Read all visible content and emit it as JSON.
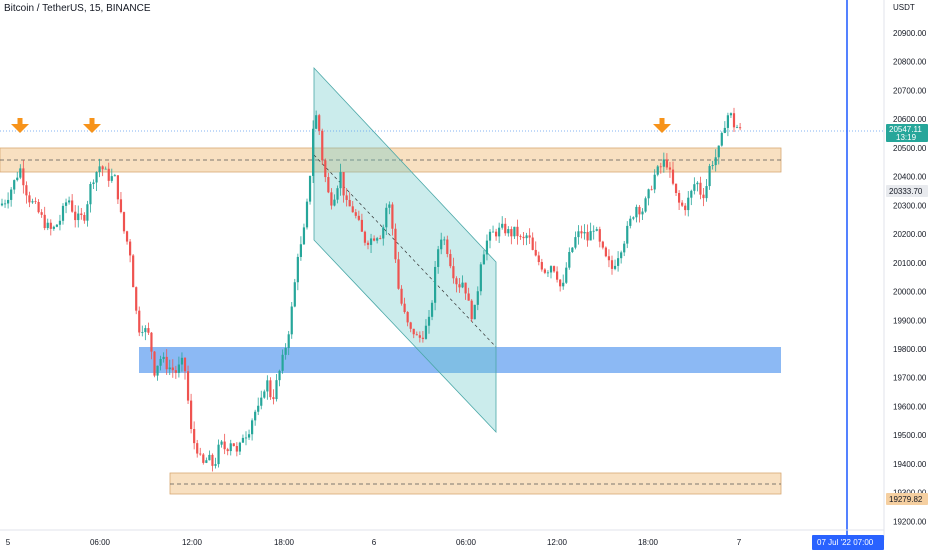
{
  "header": {
    "symbol": "Bitcoin / TetherUS, 15, BINANCE"
  },
  "price_axis": {
    "currency": "USDT",
    "ticks": [
      "20900.00",
      "20800.00",
      "20700.00",
      "20600.00",
      "20500.00",
      "20400.00",
      "20300.00",
      "20200.00",
      "20100.00",
      "20000.00",
      "19900.00",
      "19800.00",
      "19700.00",
      "19600.00",
      "19500.00",
      "19400.00",
      "19300.00",
      "19200.00"
    ],
    "last_price_label": "20547.11",
    "countdown_label": "13:19",
    "level_label": "20333.70",
    "support_label": "19279.82"
  },
  "time_axis": {
    "ticks": [
      "5",
      "06:00",
      "12:00",
      "18:00",
      "6",
      "06:00",
      "12:00",
      "18:00",
      "7"
    ],
    "crosshair_label": "07 Jul '22   07:00"
  },
  "colors": {
    "up": "#26a69a",
    "down": "#ef5350",
    "resistance_zone": "#f5cfa0",
    "demand_zone": "#5b9bf0",
    "channel": "#6bc9c9",
    "arrow": "#f7931a",
    "crosshair": "#2962ff"
  },
  "icons": {
    "marker": "down-arrow-icon"
  },
  "chart_data": {
    "type": "candlestick",
    "title": "Bitcoin / TetherUS, 15, BINANCE",
    "ylim": [
      19170,
      20980
    ],
    "x_ticks": [
      "5",
      "06:00",
      "12:00",
      "18:00",
      "6",
      "06:00",
      "12:00",
      "18:00",
      "7"
    ],
    "zones": [
      {
        "kind": "resistance",
        "from": 20400,
        "to": 20480
      },
      {
        "kind": "demand",
        "from": 19715,
        "to": 19805
      },
      {
        "kind": "support",
        "from": 19300,
        "to": 19370
      }
    ],
    "horizontal_levels": [
      20547.11,
      20333.7,
      19279.82
    ],
    "path": [
      [
        0,
        20300
      ],
      [
        6,
        20320
      ],
      [
        14,
        20380
      ],
      [
        20,
        20430
      ],
      [
        28,
        20330
      ],
      [
        36,
        20290
      ],
      [
        46,
        20230
      ],
      [
        52,
        20210
      ],
      [
        60,
        20250
      ],
      [
        68,
        20330
      ],
      [
        76,
        20250
      ],
      [
        84,
        20260
      ],
      [
        92,
        20390
      ],
      [
        100,
        20440
      ],
      [
        108,
        20400
      ],
      [
        116,
        20390
      ],
      [
        120,
        20280
      ],
      [
        124,
        20210
      ],
      [
        130,
        20140
      ],
      [
        134,
        20000
      ],
      [
        138,
        19870
      ],
      [
        142,
        19880
      ],
      [
        150,
        19840
      ],
      [
        154,
        19720
      ],
      [
        160,
        19770
      ],
      [
        168,
        19740
      ],
      [
        176,
        19720
      ],
      [
        184,
        19760
      ],
      [
        188,
        19620
      ],
      [
        192,
        19480
      ],
      [
        196,
        19470
      ],
      [
        202,
        19390
      ],
      [
        208,
        19420
      ],
      [
        214,
        19390
      ],
      [
        220,
        19470
      ],
      [
        226,
        19450
      ],
      [
        232,
        19490
      ],
      [
        238,
        19420
      ],
      [
        242,
        19500
      ],
      [
        248,
        19510
      ],
      [
        254,
        19580
      ],
      [
        260,
        19590
      ],
      [
        266,
        19700
      ],
      [
        272,
        19620
      ],
      [
        278,
        19700
      ],
      [
        284,
        19780
      ],
      [
        290,
        19890
      ],
      [
        294,
        20000
      ],
      [
        298,
        20140
      ],
      [
        302,
        20160
      ],
      [
        306,
        20260
      ],
      [
        310,
        20410
      ],
      [
        314,
        20620
      ],
      [
        318,
        20600
      ],
      [
        322,
        20470
      ],
      [
        326,
        20380
      ],
      [
        330,
        20310
      ],
      [
        336,
        20350
      ],
      [
        340,
        20420
      ],
      [
        346,
        20300
      ],
      [
        352,
        20290
      ],
      [
        358,
        20240
      ],
      [
        364,
        20180
      ],
      [
        370,
        20180
      ],
      [
        376,
        20200
      ],
      [
        382,
        20200
      ],
      [
        388,
        20330
      ],
      [
        394,
        20180
      ],
      [
        398,
        20020
      ],
      [
        402,
        19950
      ],
      [
        406,
        19900
      ],
      [
        410,
        19860
      ],
      [
        414,
        19860
      ],
      [
        418,
        19830
      ],
      [
        424,
        19860
      ],
      [
        430,
        19900
      ],
      [
        434,
        20040
      ],
      [
        440,
        20200
      ],
      [
        444,
        20180
      ],
      [
        448,
        20140
      ],
      [
        452,
        20080
      ],
      [
        458,
        20020
      ],
      [
        464,
        20040
      ],
      [
        468,
        19960
      ],
      [
        472,
        19920
      ],
      [
        476,
        19940
      ],
      [
        480,
        20100
      ],
      [
        486,
        20170
      ],
      [
        492,
        20200
      ],
      [
        498,
        20210
      ],
      [
        504,
        20220
      ],
      [
        510,
        20200
      ],
      [
        516,
        20210
      ],
      [
        522,
        20170
      ],
      [
        528,
        20200
      ],
      [
        534,
        20120
      ],
      [
        540,
        20100
      ],
      [
        546,
        20070
      ],
      [
        552,
        20100
      ],
      [
        558,
        20050
      ],
      [
        562,
        19990
      ],
      [
        566,
        20080
      ],
      [
        570,
        20130
      ],
      [
        576,
        20190
      ],
      [
        582,
        20210
      ],
      [
        588,
        20180
      ],
      [
        594,
        20230
      ],
      [
        600,
        20160
      ],
      [
        606,
        20110
      ],
      [
        612,
        20080
      ],
      [
        618,
        20130
      ],
      [
        624,
        20180
      ],
      [
        630,
        20240
      ],
      [
        636,
        20300
      ],
      [
        642,
        20280
      ],
      [
        648,
        20330
      ],
      [
        654,
        20400
      ],
      [
        660,
        20430
      ],
      [
        666,
        20460
      ],
      [
        672,
        20380
      ],
      [
        678,
        20310
      ],
      [
        684,
        20290
      ],
      [
        690,
        20330
      ],
      [
        696,
        20390
      ],
      [
        702,
        20330
      ],
      [
        706,
        20360
      ],
      [
        710,
        20440
      ],
      [
        716,
        20470
      ],
      [
        720,
        20500
      ],
      [
        726,
        20610
      ],
      [
        730,
        20620
      ],
      [
        734,
        20580
      ],
      [
        738,
        20570
      ],
      [
        742,
        20547
      ]
    ],
    "arrows_at": [
      20,
      92,
      662
    ]
  }
}
